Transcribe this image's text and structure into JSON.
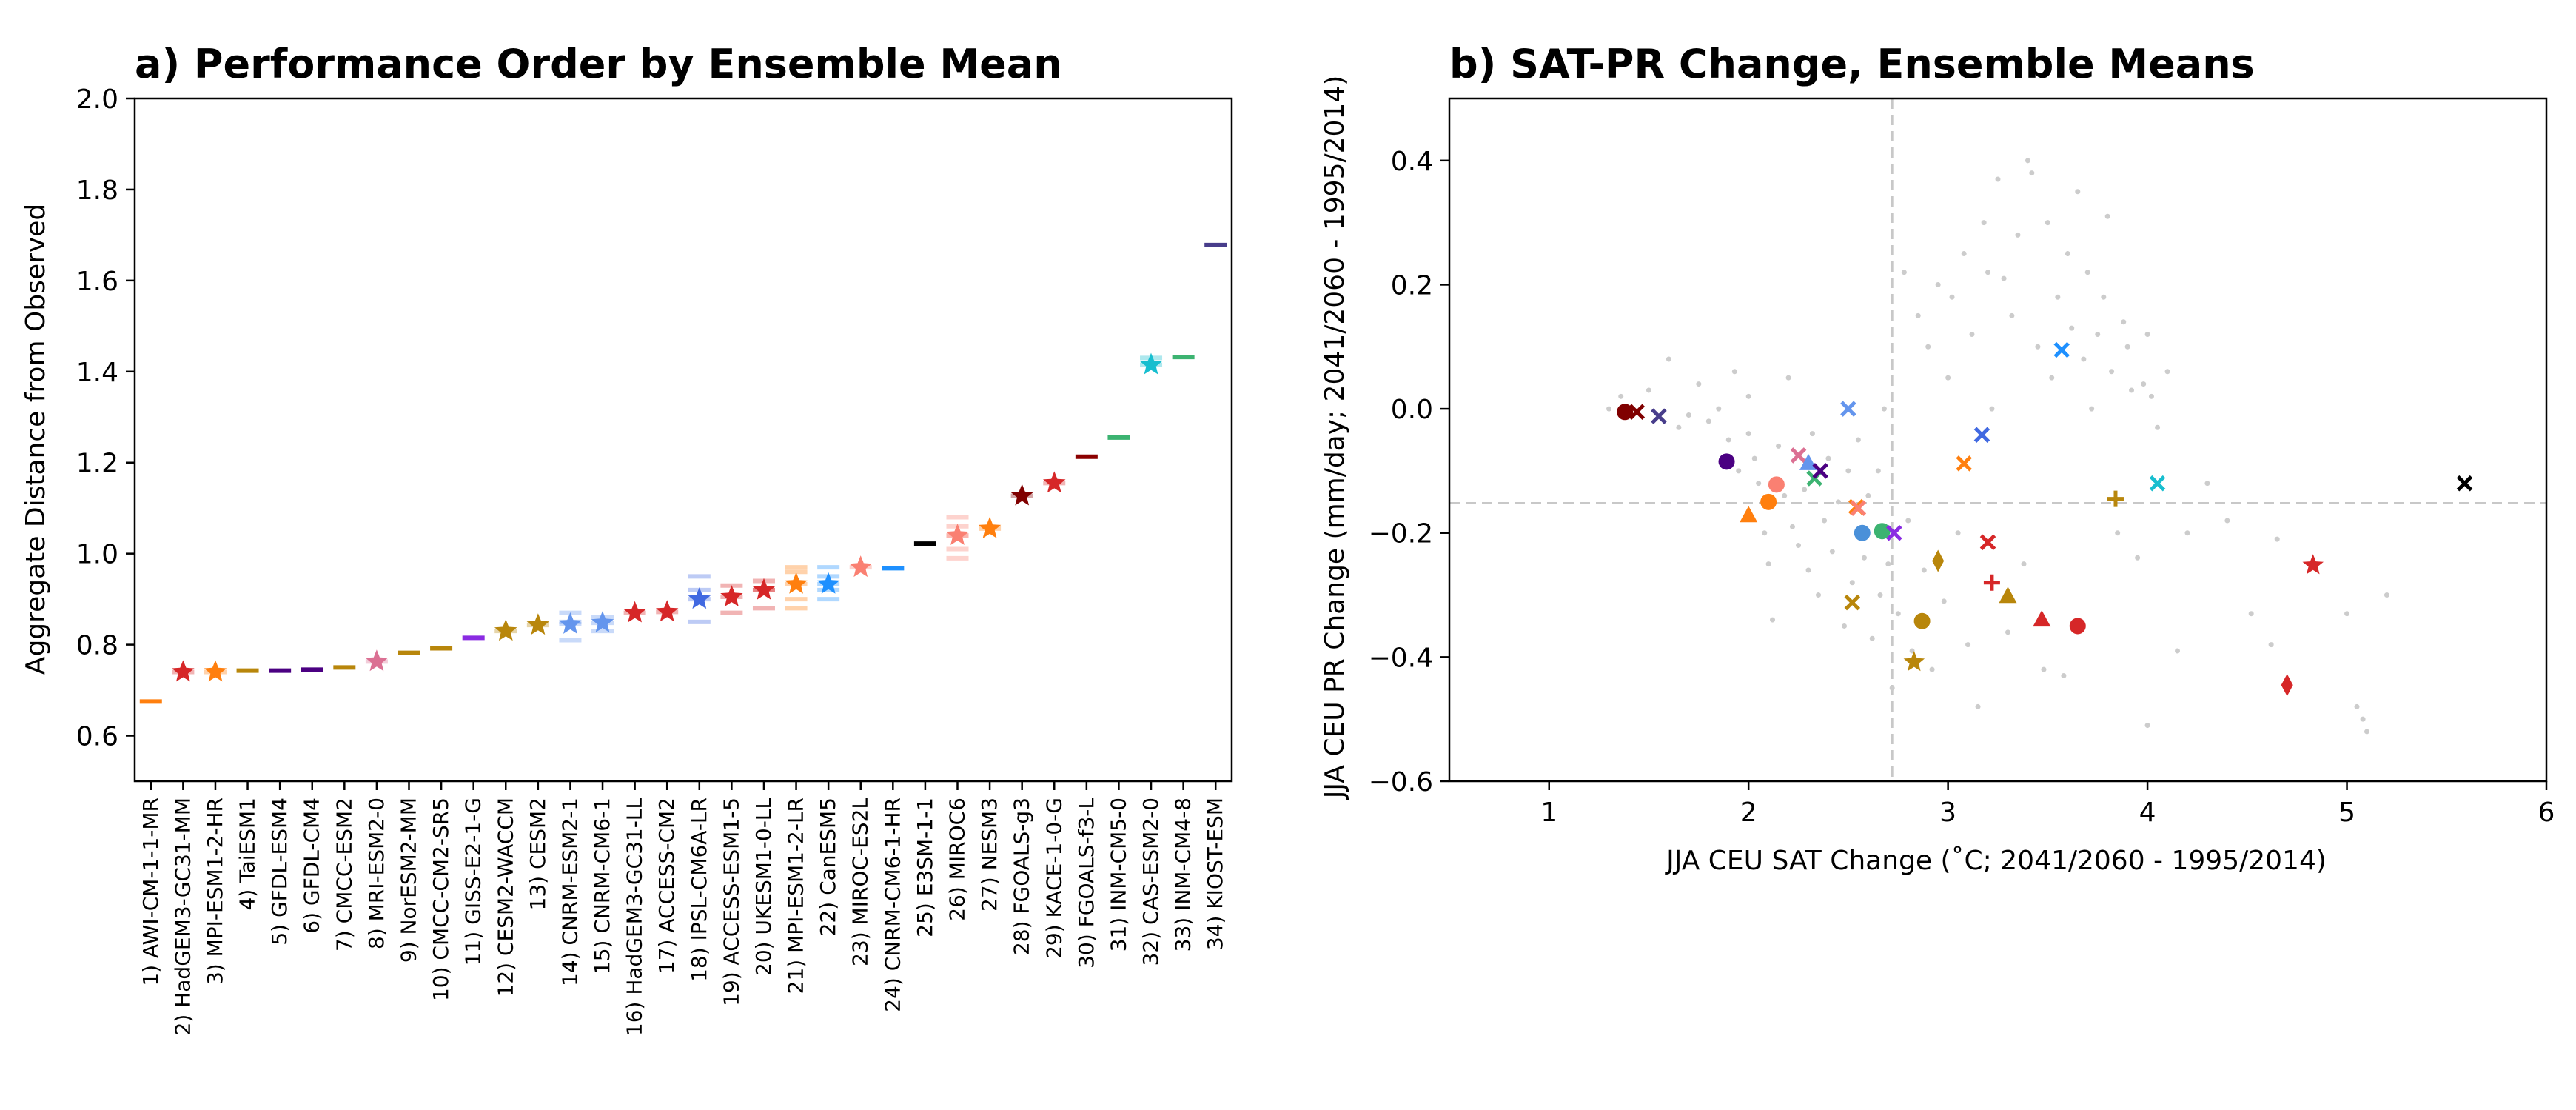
{
  "chart_data": [
    {
      "type": "scatter",
      "title": "a) Performance Order by Ensemble Mean",
      "xlabel": "",
      "ylabel": "Aggregate Distance from Observed",
      "ylim": [
        0.5,
        2.0
      ],
      "yticks": [
        "0.6",
        "0.8",
        "1.0",
        "1.2",
        "1.4",
        "1.6",
        "1.8",
        "2.0"
      ],
      "grid": false,
      "categories": [
        "1) AWI-CM-1-1-MR",
        "2) HadGEM3-GC31-MM",
        "3) MPI-ESM1-2-HR",
        "4) TaiESM1",
        "5) GFDL-ESM4",
        "6) GFDL-CM4",
        "7) CMCC-ESM2",
        "8) MRI-ESM2-0",
        "9) NorESM2-MM",
        "10) CMCC-CM2-SR5",
        "11) GISS-E2-1-G",
        "12) CESM2-WACCM",
        "13) CESM2",
        "14) CNRM-ESM2-1",
        "15) CNRM-CM6-1",
        "16) HadGEM3-GC31-LL",
        "17) ACCESS-CM2",
        "18) IPSL-CM6A-LR",
        "19) ACCESS-ESM1-5",
        "20) UKESM1-0-LL",
        "21) MPI-ESM1-2-LR",
        "22) CanESM5",
        "23) MIROC-ES2L",
        "24) CNRM-CM6-1-HR",
        "25) E3SM-1-1",
        "26) MIROC6",
        "27) NESM3",
        "28) FGOALS-g3",
        "29) KACE-1-0-G",
        "30) FGOALS-f3-L",
        "31) INM-CM5-0",
        "32) CAS-ESM2-0",
        "33) INM-CM4-8",
        "34) KIOST-ESM"
      ],
      "values": [
        0.675,
        0.74,
        0.74,
        0.743,
        0.743,
        0.745,
        0.75,
        0.763,
        0.782,
        0.792,
        0.815,
        0.83,
        0.843,
        0.845,
        0.848,
        0.87,
        0.872,
        0.9,
        0.905,
        0.92,
        0.933,
        0.933,
        0.97,
        0.968,
        1.022,
        1.04,
        1.055,
        1.127,
        1.155,
        1.213,
        1.255,
        1.415,
        1.432,
        1.678
      ],
      "markers": [
        "dash",
        "star",
        "star",
        "dash",
        "dash",
        "dash",
        "dash",
        "star",
        "dash",
        "dash",
        "dash",
        "star",
        "star",
        "star",
        "star",
        "star",
        "star",
        "star",
        "star",
        "star",
        "star",
        "star",
        "star",
        "dash",
        "dash",
        "star",
        "star",
        "star",
        "star",
        "dash",
        "dash",
        "star",
        "dash",
        "dash"
      ],
      "colors": [
        "#ff7f0e",
        "#d62728",
        "#ff7f0e",
        "#b8860b",
        "#4b0082",
        "#4b0082",
        "#b8860b",
        "#db7093",
        "#b8860b",
        "#b8860b",
        "#8a2be2",
        "#b8860b",
        "#b8860b",
        "#6495ed",
        "#6495ed",
        "#d62728",
        "#d62728",
        "#4169e1",
        "#d62728",
        "#d62728",
        "#ff7f0e",
        "#1e90ff",
        "#fa8072",
        "#1e90ff",
        "#000000",
        "#fa8072",
        "#ff7f0e",
        "#800000",
        "#d62728",
        "#8b0000",
        "#3cb371",
        "#17becf",
        "#3cb371",
        "#483d8b"
      ],
      "members": [
        [],
        [],
        [],
        [],
        [],
        [],
        [],
        [],
        [],
        [],
        [],
        [],
        [],
        [
          0.81,
          0.85,
          0.87
        ],
        [
          0.83,
          0.86
        ],
        [],
        [],
        [
          0.85,
          0.92,
          0.95
        ],
        [
          0.87,
          0.93
        ],
        [
          0.88,
          0.92,
          0.94
        ],
        [
          0.88,
          0.9,
          0.96,
          0.97
        ],
        [
          0.9,
          0.92,
          0.95,
          0.97
        ],
        [],
        [],
        [],
        [
          0.99,
          1.01,
          1.04,
          1.06,
          1.08
        ],
        [],
        [],
        [],
        [],
        [],
        [
          1.43
        ],
        [],
        []
      ]
    },
    {
      "type": "scatter",
      "title": "b) SAT-PR Change, Ensemble Means",
      "xlabel": "JJA CEU SAT Change (˚C; 2041/2060 - 1995/2014)",
      "ylabel": "JJA CEU PR Change (mm/day; 2041/2060 - 1995/2014)",
      "xlim": [
        0.5,
        6.0
      ],
      "ylim": [
        -0.6,
        0.5
      ],
      "xticks": [
        "1",
        "2",
        "3",
        "4",
        "5",
        "6"
      ],
      "yticks": [
        "−0.6",
        "−0.4",
        "−0.2",
        "0.0",
        "0.2",
        "0.4"
      ],
      "grid": false,
      "reference_lines": {
        "x": 2.72,
        "y": -0.152
      },
      "points": [
        {
          "x": 1.38,
          "y": -0.005,
          "marker": "circle",
          "color": "#800000"
        },
        {
          "x": 1.44,
          "y": -0.005,
          "marker": "x",
          "color": "#800000"
        },
        {
          "x": 1.55,
          "y": -0.012,
          "marker": "x",
          "color": "#483d8b"
        },
        {
          "x": 1.89,
          "y": -0.085,
          "marker": "circle",
          "color": "#4b0082"
        },
        {
          "x": 2.0,
          "y": -0.172,
          "marker": "triangle",
          "color": "#ff7f0e"
        },
        {
          "x": 2.1,
          "y": -0.15,
          "marker": "circle",
          "color": "#ff7f0e"
        },
        {
          "x": 2.14,
          "y": -0.122,
          "marker": "circle",
          "color": "#fa8072"
        },
        {
          "x": 2.25,
          "y": -0.075,
          "marker": "x",
          "color": "#db7093"
        },
        {
          "x": 2.3,
          "y": -0.088,
          "marker": "triangle",
          "color": "#6495ed"
        },
        {
          "x": 2.33,
          "y": -0.112,
          "marker": "x",
          "color": "#3cb371"
        },
        {
          "x": 2.36,
          "y": -0.1,
          "marker": "x",
          "color": "#4b0082"
        },
        {
          "x": 2.5,
          "y": 0.0,
          "marker": "x",
          "color": "#6495ed"
        },
        {
          "x": 2.52,
          "y": -0.312,
          "marker": "x",
          "color": "#b8860b"
        },
        {
          "x": 2.54,
          "y": -0.158,
          "marker": "x",
          "color": "#ff7f0e"
        },
        {
          "x": 2.55,
          "y": -0.16,
          "marker": "x",
          "color": "#fa8072"
        },
        {
          "x": 2.57,
          "y": -0.2,
          "marker": "circle",
          "color": "#4a90d9"
        },
        {
          "x": 2.67,
          "y": -0.197,
          "marker": "circle",
          "color": "#3cb371"
        },
        {
          "x": 2.73,
          "y": -0.2,
          "marker": "x",
          "color": "#8a2be2"
        },
        {
          "x": 2.83,
          "y": -0.408,
          "marker": "star",
          "color": "#b8860b"
        },
        {
          "x": 2.87,
          "y": -0.342,
          "marker": "circle",
          "color": "#b8860b"
        },
        {
          "x": 2.95,
          "y": -0.245,
          "marker": "diamond",
          "color": "#b8860b"
        },
        {
          "x": 3.08,
          "y": -0.088,
          "marker": "x",
          "color": "#ff7f0e"
        },
        {
          "x": 3.17,
          "y": -0.042,
          "marker": "x",
          "color": "#4169e1"
        },
        {
          "x": 3.2,
          "y": -0.215,
          "marker": "x",
          "color": "#d62728"
        },
        {
          "x": 3.22,
          "y": -0.28,
          "marker": "plus",
          "color": "#d62728"
        },
        {
          "x": 3.3,
          "y": -0.302,
          "marker": "triangle",
          "color": "#b8860b"
        },
        {
          "x": 3.47,
          "y": -0.34,
          "marker": "triangle",
          "color": "#d62728"
        },
        {
          "x": 3.57,
          "y": 0.095,
          "marker": "x",
          "color": "#1e90ff"
        },
        {
          "x": 3.65,
          "y": -0.35,
          "marker": "circle",
          "color": "#d62728"
        },
        {
          "x": 3.84,
          "y": -0.145,
          "marker": "plus",
          "color": "#b8860b"
        },
        {
          "x": 4.05,
          "y": -0.12,
          "marker": "x",
          "color": "#17becf"
        },
        {
          "x": 4.7,
          "y": -0.445,
          "marker": "diamond",
          "color": "#d62728"
        },
        {
          "x": 4.83,
          "y": -0.252,
          "marker": "star",
          "color": "#d62728"
        },
        {
          "x": 5.59,
          "y": -0.12,
          "marker": "x",
          "color": "#000000"
        }
      ],
      "member_points": [
        [
          1.3,
          0.0
        ],
        [
          1.36,
          0.02
        ],
        [
          1.5,
          0.03
        ],
        [
          1.6,
          0.08
        ],
        [
          1.65,
          -0.03
        ],
        [
          1.7,
          -0.01
        ],
        [
          1.75,
          0.04
        ],
        [
          1.8,
          -0.02
        ],
        [
          1.85,
          0.0
        ],
        [
          1.9,
          -0.05
        ],
        [
          1.93,
          0.06
        ],
        [
          1.95,
          -0.1
        ],
        [
          2.0,
          -0.04
        ],
        [
          2.0,
          0.02
        ],
        [
          2.03,
          -0.08
        ],
        [
          2.05,
          -0.12
        ],
        [
          2.08,
          -0.2
        ],
        [
          2.1,
          -0.25
        ],
        [
          2.12,
          -0.34
        ],
        [
          2.15,
          -0.06
        ],
        [
          2.18,
          -0.14
        ],
        [
          2.2,
          0.05
        ],
        [
          2.22,
          -0.19
        ],
        [
          2.25,
          -0.22
        ],
        [
          2.28,
          -0.13
        ],
        [
          2.3,
          -0.26
        ],
        [
          2.32,
          -0.04
        ],
        [
          2.35,
          -0.3
        ],
        [
          2.38,
          -0.18
        ],
        [
          2.4,
          -0.08
        ],
        [
          2.42,
          -0.23
        ],
        [
          2.45,
          -0.15
        ],
        [
          2.48,
          -0.35
        ],
        [
          2.5,
          -0.1
        ],
        [
          2.52,
          -0.28
        ],
        [
          2.55,
          -0.05
        ],
        [
          2.58,
          -0.24
        ],
        [
          2.6,
          -0.14
        ],
        [
          2.62,
          -0.37
        ],
        [
          2.65,
          -0.1
        ],
        [
          2.66,
          -0.3
        ],
        [
          2.68,
          0.0
        ],
        [
          2.7,
          -0.25
        ],
        [
          2.72,
          -0.45
        ],
        [
          2.75,
          -0.33
        ],
        [
          2.78,
          0.22
        ],
        [
          2.8,
          -0.18
        ],
        [
          2.82,
          -0.39
        ],
        [
          2.85,
          0.15
        ],
        [
          2.88,
          -0.26
        ],
        [
          2.9,
          0.1
        ],
        [
          2.92,
          -0.42
        ],
        [
          2.95,
          0.2
        ],
        [
          2.98,
          -0.31
        ],
        [
          3.0,
          0.05
        ],
        [
          3.02,
          0.18
        ],
        [
          3.05,
          -0.2
        ],
        [
          3.08,
          0.25
        ],
        [
          3.1,
          -0.38
        ],
        [
          3.12,
          0.12
        ],
        [
          3.15,
          -0.48
        ],
        [
          3.18,
          0.3
        ],
        [
          3.2,
          0.22
        ],
        [
          3.22,
          0.0
        ],
        [
          3.25,
          0.37
        ],
        [
          3.28,
          0.21
        ],
        [
          3.3,
          -0.36
        ],
        [
          3.32,
          0.15
        ],
        [
          3.35,
          0.28
        ],
        [
          3.38,
          -0.25
        ],
        [
          3.4,
          0.4
        ],
        [
          3.42,
          0.38
        ],
        [
          3.45,
          0.1
        ],
        [
          3.48,
          -0.42
        ],
        [
          3.5,
          0.3
        ],
        [
          3.52,
          0.05
        ],
        [
          3.55,
          0.18
        ],
        [
          3.58,
          -0.43
        ],
        [
          3.6,
          0.25
        ],
        [
          3.62,
          0.13
        ],
        [
          3.65,
          0.35
        ],
        [
          3.68,
          0.08
        ],
        [
          3.7,
          0.22
        ],
        [
          3.72,
          0.0
        ],
        [
          3.75,
          0.12
        ],
        [
          3.78,
          0.18
        ],
        [
          3.8,
          0.31
        ],
        [
          3.82,
          0.06
        ],
        [
          3.85,
          -0.2
        ],
        [
          3.88,
          0.14
        ],
        [
          3.9,
          0.1
        ],
        [
          3.92,
          0.03
        ],
        [
          3.95,
          -0.24
        ],
        [
          3.98,
          0.04
        ],
        [
          4.0,
          0.12
        ],
        [
          4.02,
          0.02
        ],
        [
          4.05,
          -0.03
        ],
        [
          4.1,
          0.06
        ],
        [
          4.15,
          -0.39
        ],
        [
          4.2,
          -0.2
        ],
        [
          4.3,
          -0.12
        ],
        [
          4.0,
          -0.51
        ],
        [
          4.4,
          -0.18
        ],
        [
          4.52,
          -0.33
        ],
        [
          4.62,
          -0.38
        ],
        [
          5.0,
          -0.33
        ],
        [
          5.05,
          -0.48
        ],
        [
          5.08,
          -0.5
        ],
        [
          5.1,
          -0.52
        ],
        [
          5.2,
          -0.3
        ],
        [
          4.65,
          -0.21
        ]
      ]
    }
  ]
}
